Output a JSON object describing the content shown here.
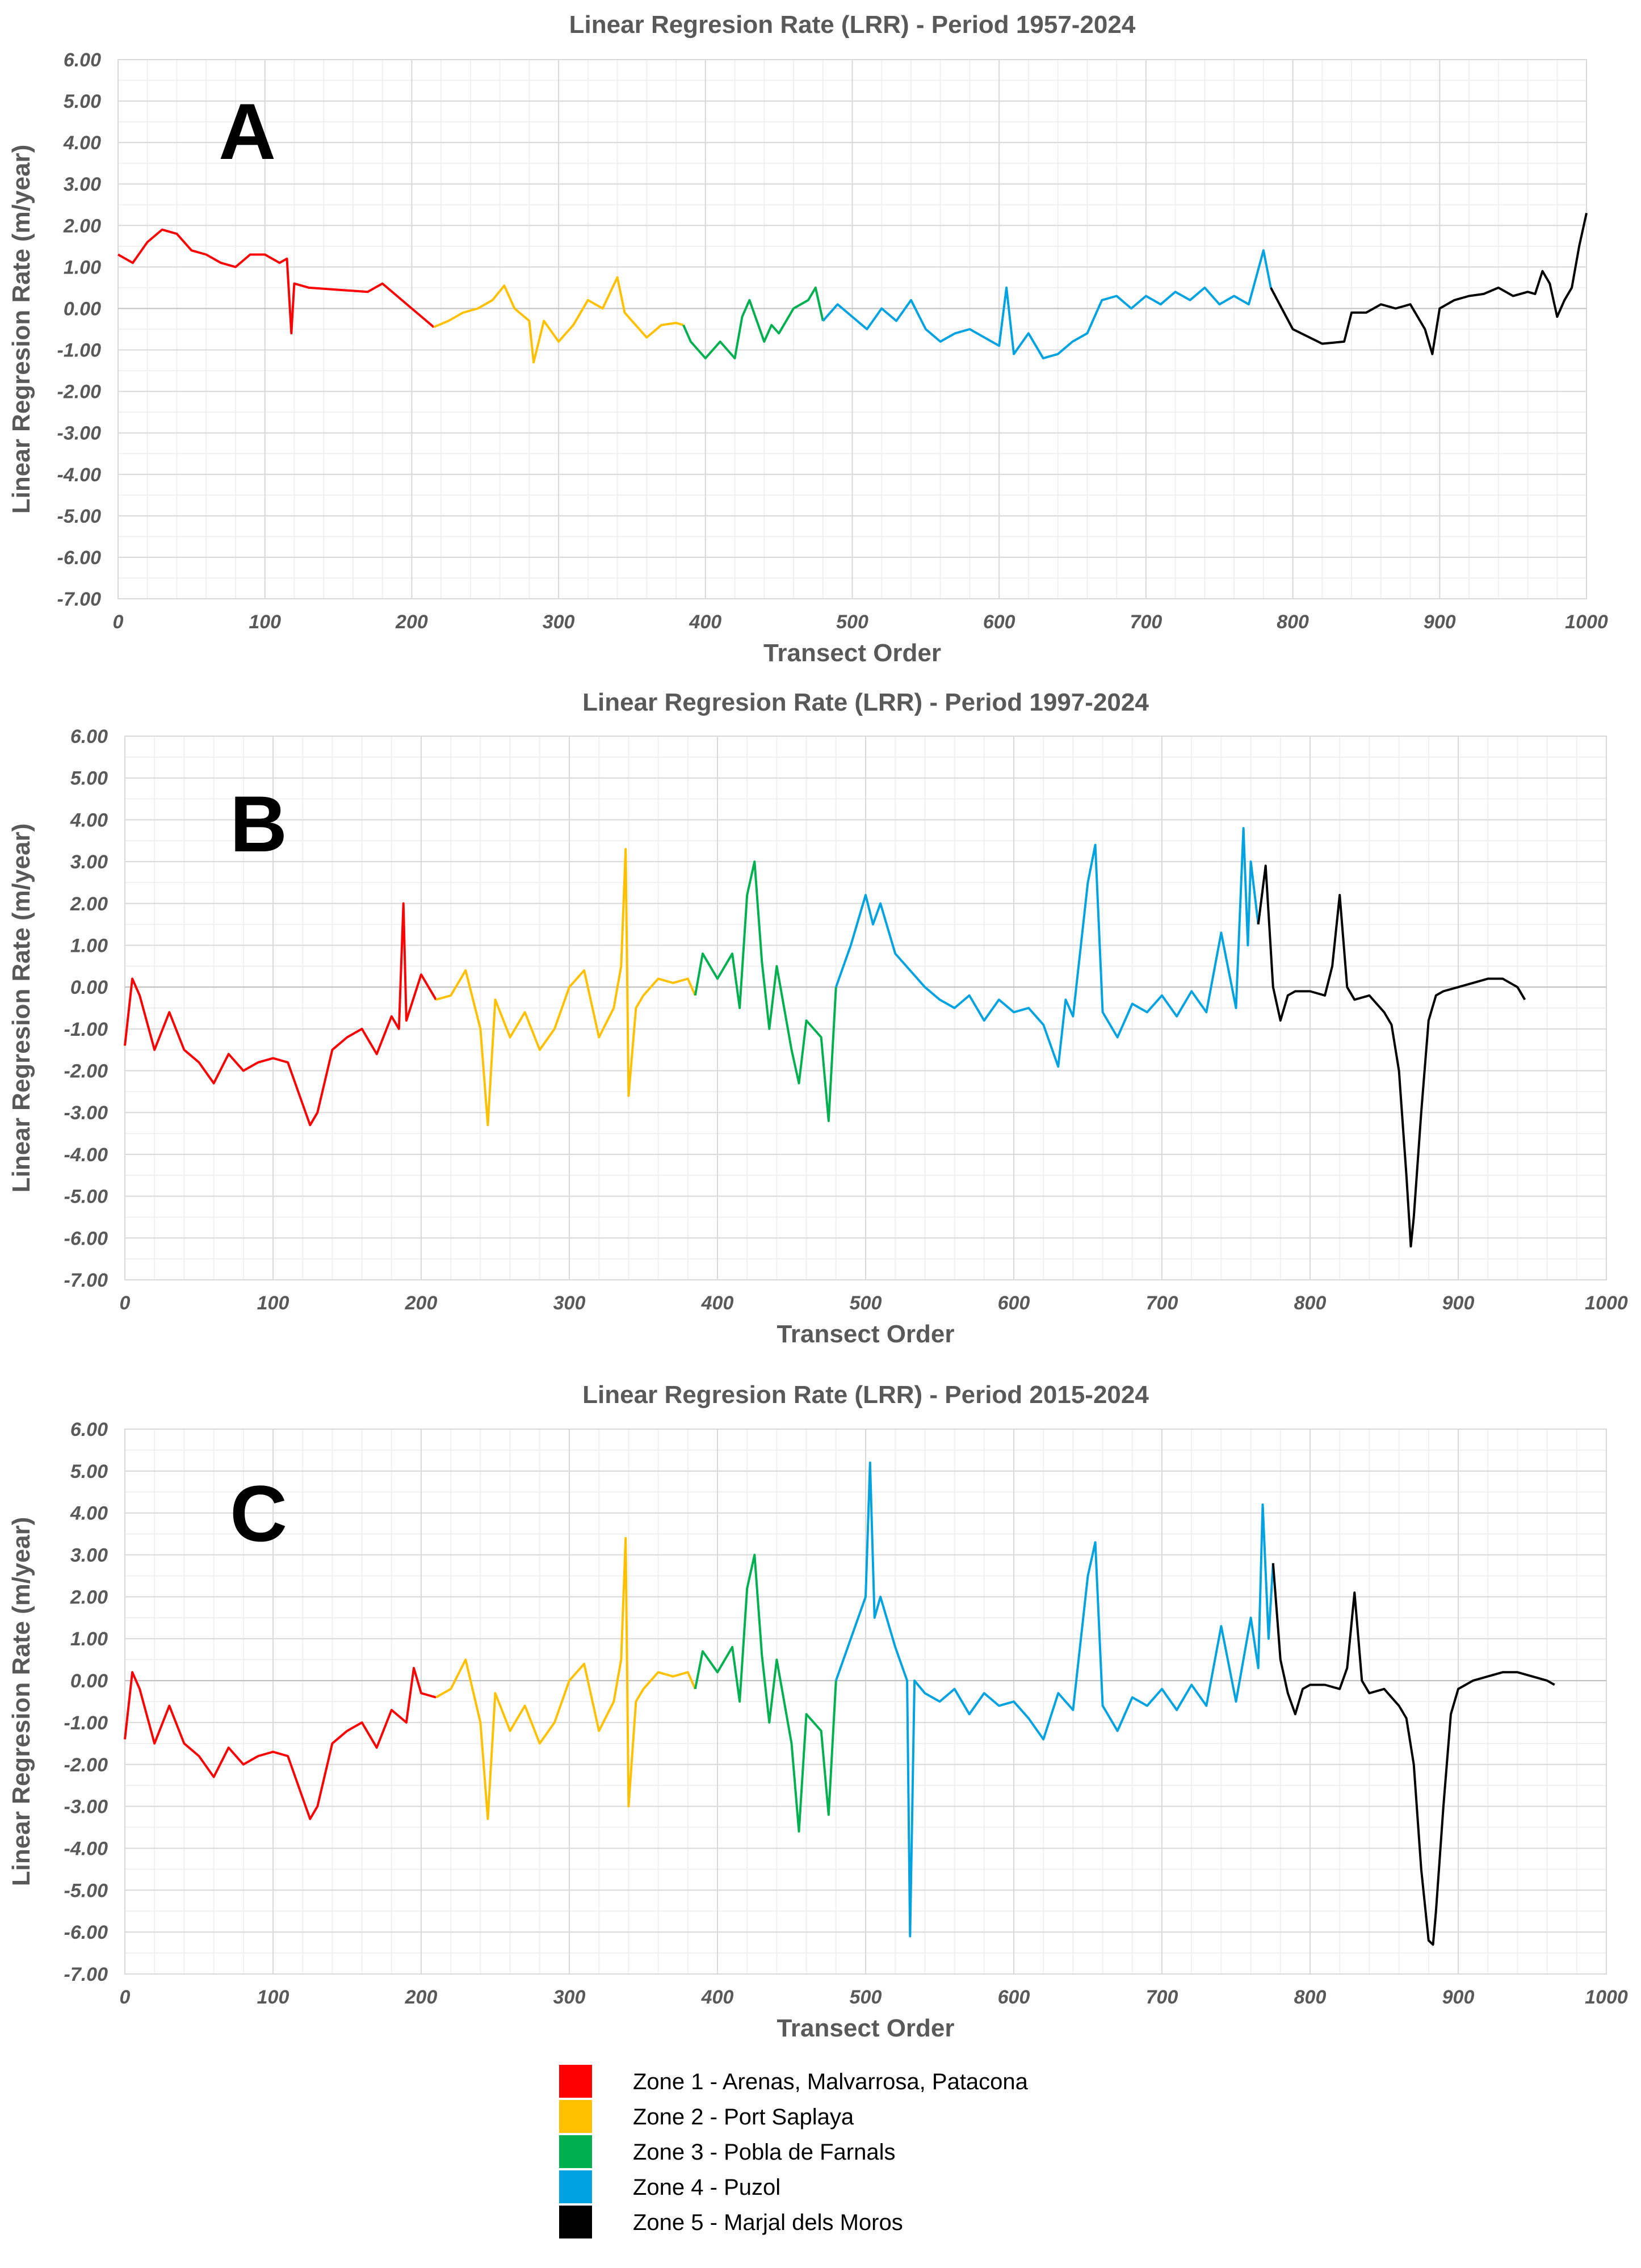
{
  "chart_data": [
    {
      "type": "line",
      "panel_letter": "A",
      "title": "Linear Regresion Rate (LRR) - Period 1957-2024",
      "xlabel": "Transect Order",
      "ylabel": "Linear Regresion Rate (m/year)",
      "xlim": [
        0,
        1000
      ],
      "ylim": [
        -7,
        6
      ],
      "x_ticks": [
        "0",
        "100",
        "200",
        "300",
        "400",
        "500",
        "600",
        "700",
        "800",
        "900",
        "1000"
      ],
      "y_ticks": [
        "6.00",
        "5.00",
        "4.00",
        "3.00",
        "2.00",
        "1.00",
        "0.00",
        "-1.00",
        "-2.00",
        "-3.00",
        "-4.00",
        "-5.00",
        "-6.00",
        "-7.00"
      ],
      "grid": true,
      "series": [
        {
          "name": "Zone 1",
          "x": [
            0,
            10,
            20,
            30,
            40,
            50,
            60,
            70,
            80,
            90,
            100,
            110,
            115,
            118,
            120,
            130,
            150,
            170,
            180,
            190,
            200,
            210,
            215
          ],
          "y": [
            1.3,
            1.1,
            1.6,
            1.9,
            1.8,
            1.4,
            1.3,
            1.1,
            1.0,
            1.3,
            1.3,
            1.1,
            1.2,
            -0.6,
            0.6,
            0.5,
            0.45,
            0.4,
            0.6,
            0.3,
            0.0,
            -0.3,
            -0.45
          ]
        },
        {
          "name": "Zone 2",
          "x": [
            215,
            225,
            235,
            245,
            255,
            263,
            270,
            280,
            283,
            290,
            300,
            310,
            320,
            330,
            340,
            345,
            350,
            360,
            370,
            380,
            385
          ],
          "y": [
            -0.45,
            -0.3,
            -0.1,
            0.0,
            0.2,
            0.55,
            0.0,
            -0.3,
            -1.3,
            -0.3,
            -0.8,
            -0.4,
            0.2,
            0.0,
            0.75,
            -0.1,
            -0.3,
            -0.7,
            -0.4,
            -0.35,
            -0.4
          ]
        },
        {
          "name": "Zone 3",
          "x": [
            385,
            390,
            400,
            410,
            420,
            425,
            430,
            440,
            445,
            450,
            460,
            470,
            475,
            480
          ],
          "y": [
            -0.4,
            -0.8,
            -1.2,
            -0.8,
            -1.2,
            -0.2,
            0.2,
            -0.8,
            -0.4,
            -0.6,
            0.0,
            0.2,
            0.5,
            -0.3
          ]
        },
        {
          "name": "Zone 4",
          "x": [
            480,
            490,
            500,
            510,
            520,
            530,
            540,
            550,
            560,
            570,
            580,
            590,
            600,
            605,
            610,
            620,
            630,
            640,
            650,
            660,
            670,
            680,
            690,
            700,
            710,
            720,
            730,
            740,
            750,
            760,
            770,
            780,
            785
          ],
          "y": [
            -0.3,
            0.1,
            -0.2,
            -0.5,
            0.0,
            -0.3,
            0.2,
            -0.5,
            -0.8,
            -0.6,
            -0.5,
            -0.7,
            -0.9,
            0.5,
            -1.1,
            -0.6,
            -1.2,
            -1.1,
            -0.8,
            -0.6,
            0.2,
            0.3,
            0.0,
            0.3,
            0.1,
            0.4,
            0.2,
            0.5,
            0.1,
            0.3,
            0.1,
            1.4,
            0.5
          ]
        },
        {
          "name": "Zone 5",
          "x": [
            785,
            800,
            820,
            835,
            840,
            850,
            860,
            870,
            880,
            890,
            895,
            900,
            910,
            920,
            930,
            940,
            950,
            960,
            965,
            970,
            975,
            980,
            985,
            990,
            995,
            1000
          ],
          "y": [
            0.5,
            -0.5,
            -0.85,
            -0.8,
            -0.1,
            -0.1,
            0.1,
            0.0,
            0.1,
            -0.5,
            -1.1,
            0.0,
            0.2,
            0.3,
            0.35,
            0.5,
            0.3,
            0.4,
            0.35,
            0.9,
            0.6,
            -0.2,
            0.2,
            0.5,
            1.5,
            2.3
          ]
        }
      ]
    },
    {
      "type": "line",
      "panel_letter": "B",
      "title": "Linear Regresion Rate (LRR) - Period 1997-2024",
      "xlabel": "Transect Order",
      "ylabel": "Linear Regresion Rate (m/year)",
      "xlim": [
        0,
        1000
      ],
      "ylim": [
        -7,
        6
      ],
      "x_ticks": [
        "0",
        "100",
        "200",
        "300",
        "400",
        "500",
        "600",
        "700",
        "800",
        "900",
        "1000"
      ],
      "y_ticks": [
        "6.00",
        "5.00",
        "4.00",
        "3.00",
        "2.00",
        "1.00",
        "0.00",
        "-1.00",
        "-2.00",
        "-3.00",
        "-4.00",
        "-5.00",
        "-6.00",
        "-7.00"
      ],
      "grid": true,
      "series": [
        {
          "name": "Zone 1",
          "x": [
            0,
            5,
            10,
            20,
            30,
            40,
            50,
            60,
            70,
            80,
            90,
            100,
            110,
            120,
            125,
            130,
            140,
            150,
            160,
            170,
            180,
            185,
            188,
            190,
            200,
            210
          ],
          "y": [
            -1.4,
            0.2,
            -0.2,
            -1.5,
            -0.6,
            -1.5,
            -1.8,
            -2.3,
            -1.6,
            -2.0,
            -1.8,
            -1.7,
            -1.8,
            -2.8,
            -3.3,
            -3.0,
            -1.5,
            -1.2,
            -1.0,
            -1.6,
            -0.7,
            -1.0,
            2.0,
            -0.8,
            0.3,
            -0.3
          ]
        },
        {
          "name": "Zone 2",
          "x": [
            210,
            220,
            230,
            240,
            245,
            250,
            260,
            270,
            280,
            290,
            300,
            310,
            320,
            330,
            335,
            338,
            340,
            345,
            350,
            360,
            370,
            380,
            385
          ],
          "y": [
            -0.3,
            -0.2,
            0.4,
            -1.0,
            -3.3,
            -0.3,
            -1.2,
            -0.6,
            -1.5,
            -1.0,
            0.0,
            0.4,
            -1.2,
            -0.5,
            0.5,
            3.3,
            -2.6,
            -0.5,
            -0.2,
            0.2,
            0.1,
            0.2,
            -0.2
          ]
        },
        {
          "name": "Zone 3",
          "x": [
            385,
            390,
            400,
            410,
            415,
            420,
            425,
            430,
            435,
            440,
            450,
            455,
            460,
            470,
            475,
            480
          ],
          "y": [
            -0.2,
            0.8,
            0.2,
            0.8,
            -0.5,
            2.2,
            3.0,
            0.6,
            -1.0,
            0.5,
            -1.5,
            -2.3,
            -0.8,
            -1.2,
            -3.2,
            0.0
          ]
        },
        {
          "name": "Zone 4",
          "x": [
            480,
            490,
            500,
            505,
            510,
            520,
            530,
            540,
            550,
            560,
            570,
            580,
            590,
            600,
            610,
            620,
            630,
            635,
            640,
            650,
            655,
            660,
            670,
            680,
            690,
            700,
            710,
            720,
            730,
            740,
            750,
            755,
            758,
            760,
            765
          ],
          "y": [
            0.0,
            1.0,
            2.2,
            1.5,
            2.0,
            0.8,
            0.4,
            0.0,
            -0.3,
            -0.5,
            -0.2,
            -0.8,
            -0.3,
            -0.6,
            -0.5,
            -0.9,
            -1.9,
            -0.3,
            -0.7,
            2.5,
            3.4,
            -0.6,
            -1.2,
            -0.4,
            -0.6,
            -0.2,
            -0.7,
            -0.1,
            -0.6,
            1.3,
            -0.5,
            3.8,
            1.0,
            3.0,
            1.5
          ]
        },
        {
          "name": "Zone 5",
          "x": [
            765,
            770,
            775,
            780,
            785,
            790,
            800,
            810,
            815,
            820,
            825,
            830,
            840,
            850,
            855,
            860,
            865,
            868,
            870,
            875,
            880,
            885,
            890,
            900,
            910,
            920,
            930,
            940,
            945
          ],
          "y": [
            1.5,
            2.9,
            0.0,
            -0.8,
            -0.2,
            -0.1,
            -0.1,
            -0.2,
            0.5,
            2.2,
            0.0,
            -0.3,
            -0.2,
            -0.6,
            -0.9,
            -2.0,
            -4.5,
            -6.2,
            -5.5,
            -3.0,
            -0.8,
            -0.2,
            -0.1,
            0.0,
            0.1,
            0.2,
            0.2,
            0.0,
            -0.3
          ]
        }
      ]
    },
    {
      "type": "line",
      "panel_letter": "C",
      "title": "Linear Regresion Rate (LRR) - Period 2015-2024",
      "xlabel": "Transect Order",
      "ylabel": "Linear Regresion Rate (m/year)",
      "xlim": [
        0,
        1000
      ],
      "ylim": [
        -7,
        6
      ],
      "x_ticks": [
        "0",
        "100",
        "200",
        "300",
        "400",
        "500",
        "600",
        "700",
        "800",
        "900",
        "1000"
      ],
      "y_ticks": [
        "6.00",
        "5.00",
        "4.00",
        "3.00",
        "2.00",
        "1.00",
        "0.00",
        "-1.00",
        "-2.00",
        "-3.00",
        "-4.00",
        "-5.00",
        "-6.00",
        "-7.00"
      ],
      "grid": true,
      "series": [
        {
          "name": "Zone 1",
          "x": [
            0,
            5,
            10,
            20,
            30,
            40,
            50,
            60,
            70,
            80,
            90,
            100,
            110,
            120,
            125,
            130,
            140,
            150,
            160,
            170,
            180,
            190,
            195,
            200,
            210
          ],
          "y": [
            -1.4,
            0.2,
            -0.2,
            -1.5,
            -0.6,
            -1.5,
            -1.8,
            -2.3,
            -1.6,
            -2.0,
            -1.8,
            -1.7,
            -1.8,
            -2.8,
            -3.3,
            -3.0,
            -1.5,
            -1.2,
            -1.0,
            -1.6,
            -0.7,
            -1.0,
            0.3,
            -0.3,
            -0.4
          ]
        },
        {
          "name": "Zone 2",
          "x": [
            210,
            220,
            230,
            240,
            245,
            250,
            260,
            270,
            280,
            290,
            300,
            310,
            320,
            330,
            335,
            338,
            340,
            345,
            350,
            360,
            370,
            380,
            385
          ],
          "y": [
            -0.4,
            -0.2,
            0.5,
            -1.0,
            -3.3,
            -0.3,
            -1.2,
            -0.6,
            -1.5,
            -1.0,
            0.0,
            0.4,
            -1.2,
            -0.5,
            0.5,
            3.4,
            -3.0,
            -0.5,
            -0.2,
            0.2,
            0.1,
            0.2,
            -0.2
          ]
        },
        {
          "name": "Zone 3",
          "x": [
            385,
            390,
            400,
            410,
            415,
            420,
            425,
            430,
            435,
            440,
            450,
            455,
            460,
            470,
            475,
            480
          ],
          "y": [
            -0.2,
            0.7,
            0.2,
            0.8,
            -0.5,
            2.2,
            3.0,
            0.6,
            -1.0,
            0.5,
            -1.5,
            -3.6,
            -0.8,
            -1.2,
            -3.2,
            0.0
          ]
        },
        {
          "name": "Zone 4",
          "x": [
            480,
            490,
            500,
            503,
            506,
            510,
            520,
            528,
            530,
            533,
            540,
            550,
            560,
            570,
            580,
            590,
            600,
            610,
            620,
            630,
            640,
            650,
            655,
            660,
            670,
            680,
            690,
            700,
            710,
            720,
            730,
            740,
            750,
            760,
            765,
            768,
            772,
            775
          ],
          "y": [
            0.0,
            1.0,
            2.0,
            5.2,
            1.5,
            2.0,
            0.8,
            0.0,
            -6.1,
            0.0,
            -0.3,
            -0.5,
            -0.2,
            -0.8,
            -0.3,
            -0.6,
            -0.5,
            -0.9,
            -1.4,
            -0.3,
            -0.7,
            2.5,
            3.3,
            -0.6,
            -1.2,
            -0.4,
            -0.6,
            -0.2,
            -0.7,
            -0.1,
            -0.6,
            1.3,
            -0.5,
            1.5,
            0.3,
            4.2,
            1.0,
            2.8
          ]
        },
        {
          "name": "Zone 5",
          "x": [
            775,
            780,
            785,
            790,
            795,
            800,
            810,
            820,
            825,
            830,
            835,
            840,
            850,
            860,
            865,
            870,
            875,
            880,
            883,
            885,
            890,
            895,
            900,
            910,
            920,
            930,
            940,
            950,
            960,
            965
          ],
          "y": [
            2.8,
            0.5,
            -0.3,
            -0.8,
            -0.2,
            -0.1,
            -0.1,
            -0.2,
            0.3,
            2.1,
            0.0,
            -0.3,
            -0.2,
            -0.6,
            -0.9,
            -2.0,
            -4.5,
            -6.2,
            -6.3,
            -5.5,
            -3.0,
            -0.8,
            -0.2,
            0.0,
            0.1,
            0.2,
            0.2,
            0.1,
            0.0,
            -0.1
          ]
        }
      ]
    }
  ],
  "legend": {
    "items": [
      {
        "label": "Zone 1 - Arenas, Malvarrosa, Patacona",
        "color": "#ff0000"
      },
      {
        "label": "Zone 2 - Port Saplaya",
        "color": "#ffc000"
      },
      {
        "label": "Zone 3 - Pobla de Farnals",
        "color": "#00b050"
      },
      {
        "label": "Zone 4 - Puzol",
        "color": "#00a3e0"
      },
      {
        "label": "Zone 5 - Marjal dels Moros",
        "color": "#000000"
      }
    ]
  }
}
